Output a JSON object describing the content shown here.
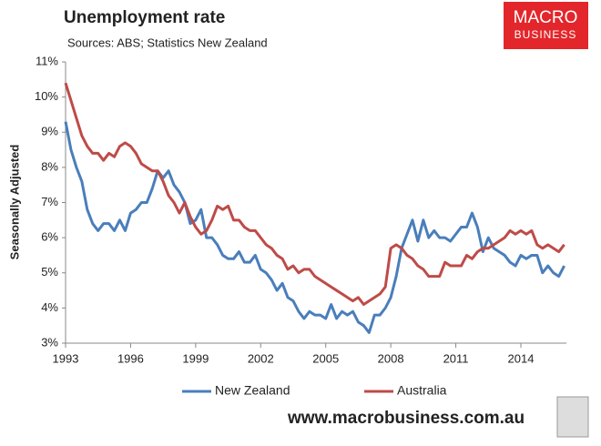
{
  "chart_data": {
    "type": "line",
    "title": "Unemployment rate",
    "subtitle": "Sources: ABS; Statistics New Zealand",
    "y_label": "Seasonally Adjusted",
    "footer": "www.macrobusiness.com.au",
    "logo": [
      "MACRO",
      "BUSINESS"
    ],
    "x": [
      1993,
      1993.25,
      1993.5,
      1993.75,
      1994,
      1994.25,
      1994.5,
      1994.75,
      1995,
      1995.25,
      1995.5,
      1995.75,
      1996,
      1996.25,
      1996.5,
      1996.75,
      1997,
      1997.25,
      1997.5,
      1997.75,
      1998,
      1998.25,
      1998.5,
      1998.75,
      1999,
      1999.25,
      1999.5,
      1999.75,
      2000,
      2000.25,
      2000.5,
      2000.75,
      2001,
      2001.25,
      2001.5,
      2001.75,
      2002,
      2002.25,
      2002.5,
      2002.75,
      2003,
      2003.25,
      2003.5,
      2003.75,
      2004,
      2004.25,
      2004.5,
      2004.75,
      2005,
      2005.25,
      2005.5,
      2005.75,
      2006,
      2006.25,
      2006.5,
      2006.75,
      2007,
      2007.25,
      2007.5,
      2007.75,
      2008,
      2008.25,
      2008.5,
      2008.75,
      2009,
      2009.25,
      2009.5,
      2009.75,
      2010,
      2010.25,
      2010.5,
      2010.75,
      2011,
      2011.25,
      2011.5,
      2011.75,
      2012,
      2012.25,
      2012.5,
      2012.75,
      2013,
      2013.25,
      2013.5,
      2013.75,
      2014,
      2014.25,
      2014.5,
      2014.75,
      2015,
      2015.25,
      2015.5,
      2015.75,
      2016
    ],
    "series": [
      {
        "name": "New Zealand",
        "color": "#4a7ebb",
        "values": [
          9.3,
          8.5,
          8.0,
          7.6,
          6.8,
          6.4,
          6.2,
          6.4,
          6.4,
          6.2,
          6.5,
          6.2,
          6.7,
          6.8,
          7.0,
          7.0,
          7.4,
          7.9,
          7.7,
          7.9,
          7.5,
          7.3,
          7.0,
          6.4,
          6.5,
          6.8,
          6.0,
          6.0,
          5.8,
          5.5,
          5.4,
          5.4,
          5.6,
          5.3,
          5.3,
          5.5,
          5.1,
          5.0,
          4.8,
          4.5,
          4.7,
          4.3,
          4.2,
          3.9,
          3.7,
          3.9,
          3.8,
          3.8,
          3.7,
          4.1,
          3.7,
          3.9,
          3.8,
          3.9,
          3.6,
          3.5,
          3.3,
          3.8,
          3.8,
          4.0,
          4.3,
          4.9,
          5.7,
          6.1,
          6.5,
          5.9,
          6.5,
          6.0,
          6.2,
          6.0,
          6.0,
          5.9,
          6.1,
          6.3,
          6.3,
          6.7,
          6.3,
          5.6,
          6.0,
          5.7,
          5.6,
          5.5,
          5.3,
          5.2,
          5.5,
          5.4,
          5.5,
          5.5,
          5.0,
          5.2,
          5.0,
          4.9,
          5.2
        ]
      },
      {
        "name": "Australia",
        "color": "#be4b48",
        "values": [
          10.4,
          9.9,
          9.4,
          8.9,
          8.6,
          8.4,
          8.4,
          8.2,
          8.4,
          8.3,
          8.6,
          8.7,
          8.6,
          8.4,
          8.1,
          8.0,
          7.9,
          7.9,
          7.6,
          7.2,
          7.0,
          6.7,
          7.0,
          6.6,
          6.3,
          6.1,
          6.2,
          6.5,
          6.9,
          6.8,
          6.9,
          6.5,
          6.5,
          6.3,
          6.2,
          6.2,
          6.0,
          5.8,
          5.7,
          5.5,
          5.4,
          5.1,
          5.2,
          5.0,
          5.1,
          5.1,
          4.9,
          4.8,
          4.7,
          4.6,
          4.5,
          4.4,
          4.3,
          4.2,
          4.3,
          4.1,
          4.2,
          4.3,
          4.4,
          4.6,
          5.7,
          5.8,
          5.7,
          5.5,
          5.4,
          5.2,
          5.1,
          4.9,
          4.9,
          4.9,
          5.3,
          5.2,
          5.2,
          5.2,
          5.5,
          5.4,
          5.6,
          5.7,
          5.7,
          5.8,
          5.9,
          6.0,
          6.2,
          6.1,
          6.2,
          6.1,
          6.2,
          5.8,
          5.7,
          5.8,
          5.7,
          5.6,
          5.8
        ]
      }
    ],
    "xlim": [
      1993,
      2016.1
    ],
    "xticks": [
      1993,
      1996,
      1999,
      2002,
      2005,
      2008,
      2011,
      2014
    ],
    "ylim": [
      3,
      11
    ],
    "yticks": [
      {
        "value": 3,
        "label": "3%"
      },
      {
        "value": 4,
        "label": "4%"
      },
      {
        "value": 5,
        "label": "5%"
      },
      {
        "value": 6,
        "label": "6%"
      },
      {
        "value": 7,
        "label": "7%"
      },
      {
        "value": 8,
        "label": "8%"
      },
      {
        "value": 9,
        "label": "9%"
      },
      {
        "value": 10,
        "label": "10%"
      },
      {
        "value": 11,
        "label": "11%"
      }
    ],
    "grid": false,
    "legend": "bottom"
  }
}
